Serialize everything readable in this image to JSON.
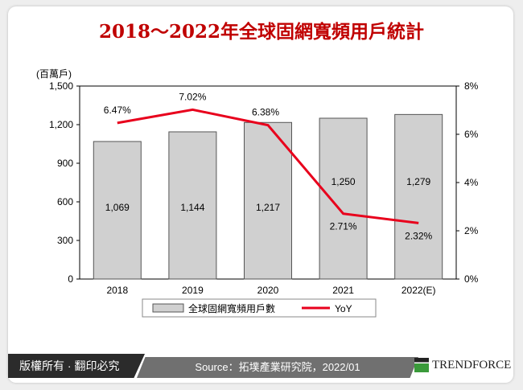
{
  "title": "2018～2022年全球固網寬頻用戶統計",
  "footer": {
    "copyright": "版權所有 · 翻印必究",
    "source": "Source：拓墣產業研究院，2022/01",
    "brand": "TrendForce"
  },
  "chart_data": {
    "type": "bar+line",
    "categories": [
      "2018",
      "2019",
      "2020",
      "2021",
      "2022(E)"
    ],
    "y_left": {
      "unit_label": "(百萬戶)",
      "range": [
        0,
        1500
      ],
      "ticks": [
        "0",
        "300",
        "600",
        "900",
        "1,200",
        "1,500"
      ]
    },
    "y_right": {
      "range": [
        0,
        8
      ],
      "ticks": [
        "0%",
        "2%",
        "4%",
        "6%",
        "8%"
      ]
    },
    "series": [
      {
        "name": "全球固網寬頻用戶數",
        "type": "bar",
        "axis": "left",
        "values": [
          1069,
          1144,
          1217,
          1250,
          1279
        ],
        "labels": [
          "1,069",
          "1,144",
          "1,217",
          "1,250",
          "1,279"
        ],
        "color": "#d0d0d0"
      },
      {
        "name": "YoY",
        "type": "line",
        "axis": "right",
        "values": [
          6.47,
          7.02,
          6.38,
          2.71,
          2.32
        ],
        "labels": [
          "6.47%",
          "7.02%",
          "6.38%",
          "2.71%",
          "2.32%"
        ],
        "color": "#e8001c"
      }
    ],
    "legend": "bottom",
    "grid": false
  }
}
